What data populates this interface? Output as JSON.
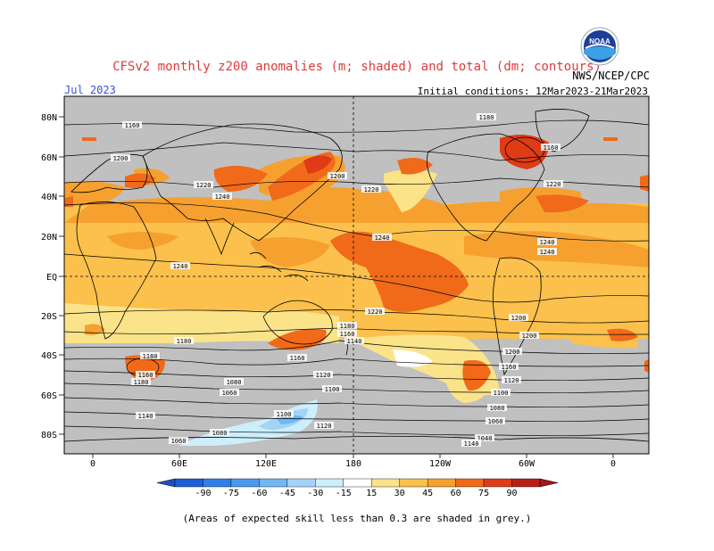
{
  "header": {
    "title": "CFSv2 monthly z200 anomalies (m; shaded) and total (dm; contours)",
    "month": "Jul 2023",
    "initial_conditions": "Initial conditions: 12Mar2023-21Mar2023",
    "agency": "NWS/NCEP/CPC",
    "logo_text": "NOAA"
  },
  "map": {
    "lat_labels": [
      "80N",
      "60N",
      "40N",
      "20N",
      "EQ",
      "20S",
      "40S",
      "60S",
      "80S"
    ],
    "lon_labels": [
      "0",
      "60E",
      "120E",
      "180",
      "120W",
      "60W",
      "0"
    ],
    "contour_labels": [
      "1160",
      "1180",
      "1160",
      "1200",
      "1220",
      "1240",
      "1200",
      "1220",
      "1220",
      "1240",
      "1240",
      "1240",
      "1240",
      "1220",
      "1200",
      "1180",
      "1180",
      "1160",
      "1160",
      "1200",
      "1180",
      "1160",
      "1140",
      "1120",
      "1100",
      "1080",
      "1060",
      "1140",
      "1120",
      "1100",
      "1080",
      "1060",
      "1040",
      "1200",
      "1180",
      "1160",
      "1140",
      "1120",
      "1100",
      "1080",
      "1060"
    ]
  },
  "colorbar": {
    "ticks": [
      "-90",
      "-75",
      "-60",
      "-45",
      "-30",
      "-15",
      "15",
      "30",
      "45",
      "60",
      "75",
      "90"
    ],
    "colors": [
      "#1f5fd6",
      "#2f7fe8",
      "#4a99ef",
      "#72b6f4",
      "#a3d3f7",
      "#cdeefb",
      "#ffffff",
      "#fbe38a",
      "#fbc14c",
      "#f6a030",
      "#f06a1a",
      "#de3b16",
      "#b81e14"
    ],
    "colorbar_arrow_colors": {
      "left": "#1f4fc6",
      "right": "#a8161b"
    }
  },
  "footer": {
    "note": "(Areas of expected skill less than 0.3 are shaded in grey.)"
  },
  "colors": {
    "grey": "#c0c0c0",
    "light_yellow": "#fbe38a",
    "light_orange": "#fbc14c",
    "orange": "#f6a030",
    "red_orange": "#f06a1a",
    "red": "#de3b16"
  }
}
